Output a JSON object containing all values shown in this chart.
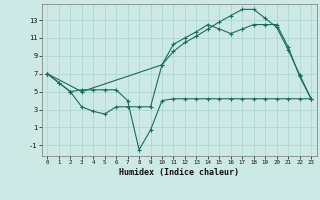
{
  "xlabel": "Humidex (Indice chaleur)",
  "background_color": "#cce9e5",
  "grid_color": "#aad4cf",
  "line_color": "#1a6b60",
  "xlim": [
    -0.5,
    23.5
  ],
  "ylim": [
    -2.2,
    14.8
  ],
  "xticks": [
    0,
    1,
    2,
    3,
    4,
    5,
    6,
    7,
    8,
    9,
    10,
    11,
    12,
    13,
    14,
    15,
    16,
    17,
    18,
    19,
    20,
    21,
    22,
    23
  ],
  "yticks": [
    -1,
    1,
    3,
    5,
    7,
    9,
    11,
    13
  ],
  "line1_x": [
    0,
    1,
    2,
    3,
    4,
    5,
    6,
    7,
    8,
    9,
    10,
    11,
    12,
    13,
    14,
    15,
    16,
    17,
    18,
    19,
    20,
    21,
    22,
    23
  ],
  "line1_y": [
    7.0,
    6.0,
    5.0,
    5.2,
    5.2,
    5.2,
    5.2,
    4.0,
    -1.5,
    0.7,
    4.0,
    4.2,
    4.2,
    4.2,
    4.2,
    4.2,
    4.2,
    4.2,
    4.2,
    4.2,
    4.2,
    4.2,
    4.2,
    4.2
  ],
  "line2_x": [
    0,
    1,
    2,
    3,
    4,
    5,
    6,
    7,
    8,
    9,
    10,
    11,
    12,
    13,
    14,
    15,
    16,
    17,
    18,
    19,
    20,
    21,
    22,
    23
  ],
  "line2_y": [
    7.0,
    6.0,
    5.0,
    3.3,
    2.8,
    2.5,
    3.3,
    3.3,
    3.3,
    3.3,
    8.0,
    9.5,
    10.5,
    11.2,
    12.0,
    12.8,
    13.5,
    14.2,
    14.2,
    13.2,
    12.2,
    9.7,
    6.9,
    4.2
  ],
  "line3_x": [
    0,
    3,
    10,
    11,
    12,
    13,
    14,
    15,
    16,
    17,
    18,
    19,
    20,
    21,
    22,
    23
  ],
  "line3_y": [
    7.0,
    5.0,
    8.0,
    10.3,
    11.0,
    11.7,
    12.5,
    12.0,
    11.5,
    12.0,
    12.5,
    12.5,
    12.5,
    10.0,
    6.7,
    4.2
  ]
}
